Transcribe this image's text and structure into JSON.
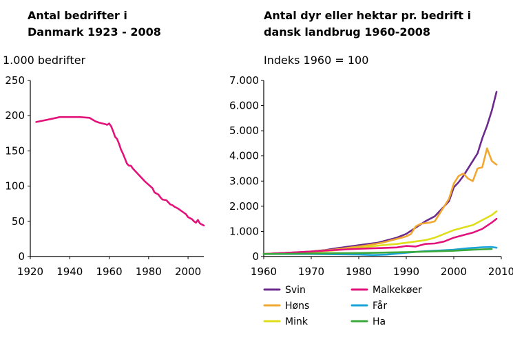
{
  "chart_data": [
    {
      "type": "line",
      "title_lines": [
        "Antal bedrifter i",
        "Danmark 1923 - 2008"
      ],
      "unit": "1.000 bedrifter",
      "xlim": [
        1920,
        2008
      ],
      "ylim": [
        0,
        250
      ],
      "xticks": [
        1920,
        1940,
        1960,
        1980,
        2000
      ],
      "yticks": [
        0,
        50,
        100,
        150,
        200,
        250
      ],
      "grid": false,
      "series": [
        {
          "color": "#e2127a",
          "points": [
            [
              1923,
              191
            ],
            [
              1930,
              195
            ],
            [
              1935,
              198
            ],
            [
              1940,
              198
            ],
            [
              1945,
              198
            ],
            [
              1950,
              197
            ],
            [
              1953,
              192
            ],
            [
              1955,
              190
            ],
            [
              1958,
              188
            ],
            [
              1959,
              187
            ],
            [
              1960,
              189
            ],
            [
              1961,
              185
            ],
            [
              1962,
              178
            ],
            [
              1963,
              170
            ],
            [
              1964,
              167
            ],
            [
              1965,
              160
            ],
            [
              1966,
              152
            ],
            [
              1967,
              146
            ],
            [
              1968,
              139
            ],
            [
              1969,
              132
            ],
            [
              1970,
              129
            ],
            [
              1971,
              129
            ],
            [
              1972,
              125
            ],
            [
              1974,
              119
            ],
            [
              1976,
              113
            ],
            [
              1978,
              107
            ],
            [
              1980,
              102
            ],
            [
              1982,
              97
            ],
            [
              1983,
              91
            ],
            [
              1985,
              88
            ],
            [
              1986,
              84
            ],
            [
              1987,
              81
            ],
            [
              1989,
              80
            ],
            [
              1990,
              77
            ],
            [
              1991,
              74
            ],
            [
              1992,
              73
            ],
            [
              1993,
              71
            ],
            [
              1995,
              68
            ],
            [
              1997,
              64
            ],
            [
              1999,
              60
            ],
            [
              2000,
              56
            ],
            [
              2002,
              53
            ],
            [
              2003,
              50
            ],
            [
              2004,
              48
            ],
            [
              2005,
              52
            ],
            [
              2006,
              47
            ],
            [
              2008,
              44
            ]
          ]
        }
      ]
    },
    {
      "type": "line",
      "title_lines": [
        "Antal dyr eller hektar pr. bedrift i",
        "dansk landbrug 1960-2008"
      ],
      "unit": "Indeks 1960 = 100",
      "xlim": [
        1960,
        2010
      ],
      "ylim": [
        0,
        7000
      ],
      "xticks": [
        1960,
        1970,
        1980,
        1990,
        2000,
        2010
      ],
      "yticks": [
        0,
        1000,
        2000,
        3000,
        4000,
        5000,
        6000,
        7000
      ],
      "ytick_labels": [
        "0",
        "1.000",
        "2.000",
        "3.000",
        "4.000",
        "5.000",
        "6.000",
        "7.000"
      ],
      "grid": false,
      "legend": "bottom",
      "series": [
        {
          "name": "Svin",
          "color": "#6b2a8c",
          "points": [
            [
              1960,
              100
            ],
            [
              1965,
              150
            ],
            [
              1970,
              200
            ],
            [
              1973,
              260
            ],
            [
              1975,
              320
            ],
            [
              1978,
              400
            ],
            [
              1980,
              450
            ],
            [
              1982,
              500
            ],
            [
              1984,
              550
            ],
            [
              1986,
              650
            ],
            [
              1988,
              750
            ],
            [
              1990,
              900
            ],
            [
              1992,
              1150
            ],
            [
              1994,
              1400
            ],
            [
              1996,
              1600
            ],
            [
              1998,
              2000
            ],
            [
              1999,
              2200
            ],
            [
              2000,
              2750
            ],
            [
              2001,
              2950
            ],
            [
              2002,
              3200
            ],
            [
              2003,
              3500
            ],
            [
              2004,
              3800
            ],
            [
              2005,
              4100
            ],
            [
              2006,
              4700
            ],
            [
              2007,
              5200
            ],
            [
              2008,
              5800
            ],
            [
              2009,
              6550
            ]
          ]
        },
        {
          "name": "Høns",
          "color": "#f0a830",
          "points": [
            [
              1960,
              100
            ],
            [
              1965,
              140
            ],
            [
              1970,
              200
            ],
            [
              1975,
              280
            ],
            [
              1978,
              350
            ],
            [
              1980,
              400
            ],
            [
              1982,
              450
            ],
            [
              1985,
              550
            ],
            [
              1988,
              700
            ],
            [
              1989,
              750
            ],
            [
              1990,
              800
            ],
            [
              1991,
              900
            ],
            [
              1992,
              1200
            ],
            [
              1993,
              1300
            ],
            [
              1995,
              1350
            ],
            [
              1996,
              1400
            ],
            [
              1997,
              1700
            ],
            [
              1998,
              2000
            ],
            [
              1999,
              2300
            ],
            [
              2000,
              2900
            ],
            [
              2001,
              3200
            ],
            [
              2002,
              3300
            ],
            [
              2003,
              3100
            ],
            [
              2004,
              3000
            ],
            [
              2005,
              3500
            ],
            [
              2006,
              3550
            ],
            [
              2007,
              4300
            ],
            [
              2008,
              3800
            ],
            [
              2009,
              3650
            ]
          ]
        },
        {
          "name": "Mink",
          "color": "#dede1a",
          "points": [
            [
              1960,
              100
            ],
            [
              1965,
              130
            ],
            [
              1970,
              170
            ],
            [
              1975,
              250
            ],
            [
              1980,
              350
            ],
            [
              1985,
              450
            ],
            [
              1988,
              500
            ],
            [
              1990,
              550
            ],
            [
              1992,
              600
            ],
            [
              1994,
              650
            ],
            [
              1996,
              750
            ],
            [
              1998,
              900
            ],
            [
              2000,
              1050
            ],
            [
              2002,
              1150
            ],
            [
              2004,
              1250
            ],
            [
              2006,
              1450
            ],
            [
              2008,
              1650
            ],
            [
              2009,
              1800
            ]
          ]
        },
        {
          "name": "Malkekøer",
          "color": "#e2127a",
          "points": [
            [
              1960,
              100
            ],
            [
              1965,
              150
            ],
            [
              1970,
              200
            ],
            [
              1975,
              260
            ],
            [
              1980,
              310
            ],
            [
              1985,
              340
            ],
            [
              1988,
              360
            ],
            [
              1990,
              420
            ],
            [
              1992,
              400
            ],
            [
              1994,
              500
            ],
            [
              1996,
              520
            ],
            [
              1998,
              600
            ],
            [
              2000,
              750
            ],
            [
              2002,
              850
            ],
            [
              2004,
              950
            ],
            [
              2006,
              1100
            ],
            [
              2008,
              1350
            ],
            [
              2009,
              1500
            ]
          ]
        },
        {
          "name": "Får",
          "color": "#1aa3d9",
          "points": [
            [
              1960,
              100
            ],
            [
              1965,
              100
            ],
            [
              1970,
              100
            ],
            [
              1975,
              90
            ],
            [
              1980,
              80
            ],
            [
              1983,
              60
            ],
            [
              1986,
              80
            ],
            [
              1990,
              150
            ],
            [
              1993,
              200
            ],
            [
              1996,
              230
            ],
            [
              2000,
              270
            ],
            [
              2003,
              330
            ],
            [
              2006,
              370
            ],
            [
              2008,
              380
            ],
            [
              2009,
              350
            ]
          ]
        },
        {
          "name": "Ha",
          "color": "#3aa83a",
          "points": [
            [
              1960,
              100
            ],
            [
              1965,
              110
            ],
            [
              1970,
              120
            ],
            [
              1975,
              130
            ],
            [
              1980,
              140
            ],
            [
              1985,
              155
            ],
            [
              1990,
              175
            ],
            [
              1995,
              200
            ],
            [
              2000,
              230
            ],
            [
              2004,
              270
            ],
            [
              2008,
              300
            ]
          ]
        }
      ]
    }
  ]
}
